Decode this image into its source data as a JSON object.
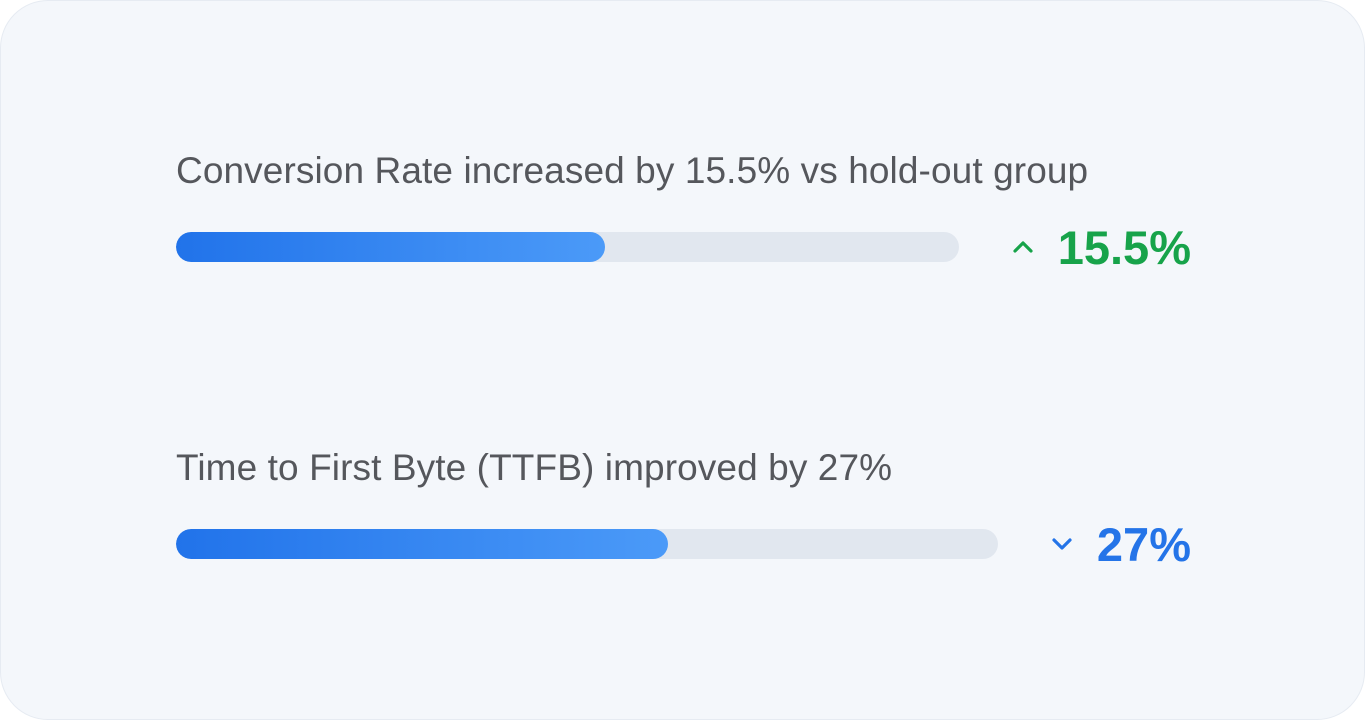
{
  "metrics": [
    {
      "title": "Conversion Rate increased by 15.5% vs hold-out group",
      "value_label": "15.5%",
      "direction": "up",
      "direction_icon": "chevron-up-icon",
      "bar_fill_fraction": 0.548,
      "color": "#17a34a"
    },
    {
      "title": "Time to First Byte (TTFB) improved by 27%",
      "value_label": "27%",
      "direction": "down",
      "direction_icon": "chevron-down-icon",
      "bar_fill_fraction": 0.599,
      "color": "#2474e8"
    }
  ],
  "bar_gradient": [
    "#2173ea",
    "#4b9af8"
  ],
  "track_color": "#e1e7ef"
}
